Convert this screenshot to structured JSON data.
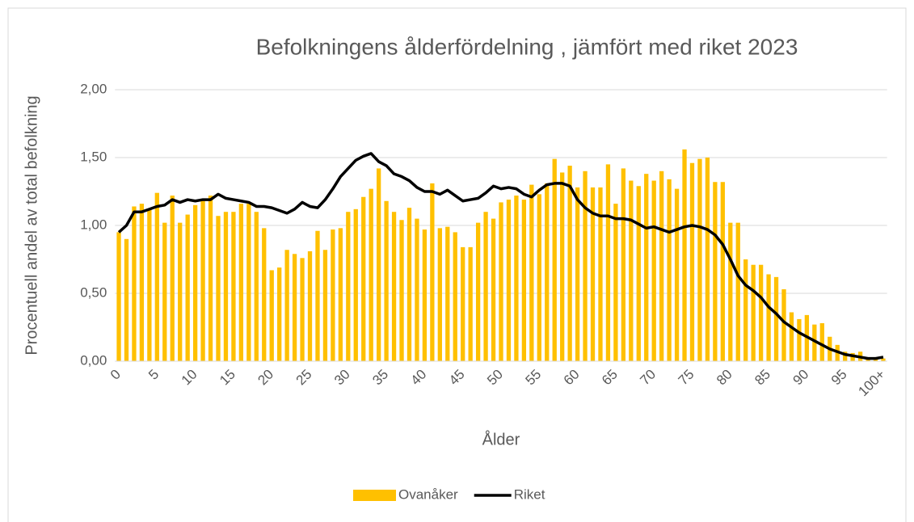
{
  "chart_data": {
    "type": "bar_line",
    "title": "Befolkningens ålderfördelning , jämfört med riket 2023",
    "y_label": "Procentuell andel av total befolkning",
    "x_label": "Ålder",
    "categories": [
      "0",
      null,
      null,
      null,
      null,
      "5",
      null,
      null,
      null,
      null,
      "10",
      null,
      null,
      null,
      null,
      "15",
      null,
      null,
      null,
      null,
      "20",
      null,
      null,
      null,
      null,
      "25",
      null,
      null,
      null,
      null,
      "30",
      null,
      null,
      null,
      null,
      "35",
      null,
      null,
      null,
      null,
      "40",
      null,
      null,
      null,
      null,
      "45",
      null,
      null,
      null,
      null,
      "50",
      null,
      null,
      null,
      null,
      "55",
      null,
      null,
      null,
      null,
      "60",
      null,
      null,
      null,
      null,
      "65",
      null,
      null,
      null,
      null,
      "70",
      null,
      null,
      null,
      null,
      "75",
      null,
      null,
      null,
      null,
      "80",
      null,
      null,
      null,
      null,
      "85",
      null,
      null,
      null,
      null,
      "90",
      null,
      null,
      null,
      null,
      "95",
      null,
      null,
      null,
      null,
      "100+"
    ],
    "series": [
      {
        "name": "Ovanåker",
        "kind": "bar",
        "color": "#ffc000",
        "values": [
          0.95,
          0.9,
          1.14,
          1.16,
          1.12,
          1.24,
          1.02,
          1.22,
          1.02,
          1.08,
          1.15,
          1.18,
          1.22,
          1.07,
          1.1,
          1.1,
          1.16,
          1.16,
          1.1,
          0.98,
          0.67,
          0.69,
          0.82,
          0.79,
          0.76,
          0.81,
          0.96,
          0.82,
          0.97,
          0.98,
          1.1,
          1.12,
          1.21,
          1.27,
          1.42,
          1.18,
          1.1,
          1.04,
          1.13,
          1.05,
          0.97,
          1.31,
          0.98,
          0.99,
          0.95,
          0.84,
          0.84,
          1.02,
          1.1,
          1.05,
          1.17,
          1.19,
          1.22,
          1.19,
          1.3,
          1.23,
          1.31,
          1.49,
          1.39,
          1.44,
          1.28,
          1.4,
          1.28,
          1.28,
          1.45,
          1.16,
          1.42,
          1.33,
          1.29,
          1.38,
          1.33,
          1.4,
          1.34,
          1.27,
          1.56,
          1.46,
          1.49,
          1.5,
          1.32,
          1.32,
          1.02,
          1.02,
          0.75,
          0.71,
          0.71,
          0.64,
          0.62,
          0.53,
          0.36,
          0.31,
          0.34,
          0.27,
          0.28,
          0.18,
          0.12,
          0.07,
          0.06,
          0.07,
          0.03,
          0.02,
          0.02
        ]
      },
      {
        "name": "Riket",
        "kind": "line",
        "color": "#000000",
        "values": [
          0.95,
          1.0,
          1.1,
          1.1,
          1.12,
          1.14,
          1.15,
          1.19,
          1.17,
          1.19,
          1.18,
          1.19,
          1.19,
          1.23,
          1.2,
          1.19,
          1.18,
          1.17,
          1.14,
          1.14,
          1.13,
          1.11,
          1.09,
          1.12,
          1.17,
          1.14,
          1.13,
          1.19,
          1.27,
          1.36,
          1.42,
          1.48,
          1.51,
          1.53,
          1.47,
          1.44,
          1.38,
          1.36,
          1.33,
          1.28,
          1.25,
          1.25,
          1.23,
          1.26,
          1.22,
          1.18,
          1.19,
          1.2,
          1.24,
          1.29,
          1.27,
          1.28,
          1.27,
          1.23,
          1.21,
          1.26,
          1.3,
          1.31,
          1.31,
          1.29,
          1.19,
          1.13,
          1.09,
          1.07,
          1.07,
          1.05,
          1.05,
          1.04,
          1.01,
          0.98,
          0.99,
          0.97,
          0.95,
          0.97,
          0.99,
          1.0,
          0.99,
          0.97,
          0.93,
          0.86,
          0.75,
          0.63,
          0.56,
          0.52,
          0.47,
          0.4,
          0.35,
          0.29,
          0.25,
          0.21,
          0.18,
          0.15,
          0.12,
          0.09,
          0.07,
          0.05,
          0.04,
          0.03,
          0.02,
          0.02,
          0.03
        ]
      }
    ],
    "ylim": [
      0,
      2
    ],
    "yticks": [
      {
        "value": 0,
        "label": "0,00"
      },
      {
        "value": 0.5,
        "label": "0,50"
      },
      {
        "value": 1,
        "label": "1,00"
      },
      {
        "value": 1.5,
        "label": "1,50"
      },
      {
        "value": 2,
        "label": "2,00"
      }
    ],
    "grid": true,
    "legend": "bottom"
  }
}
